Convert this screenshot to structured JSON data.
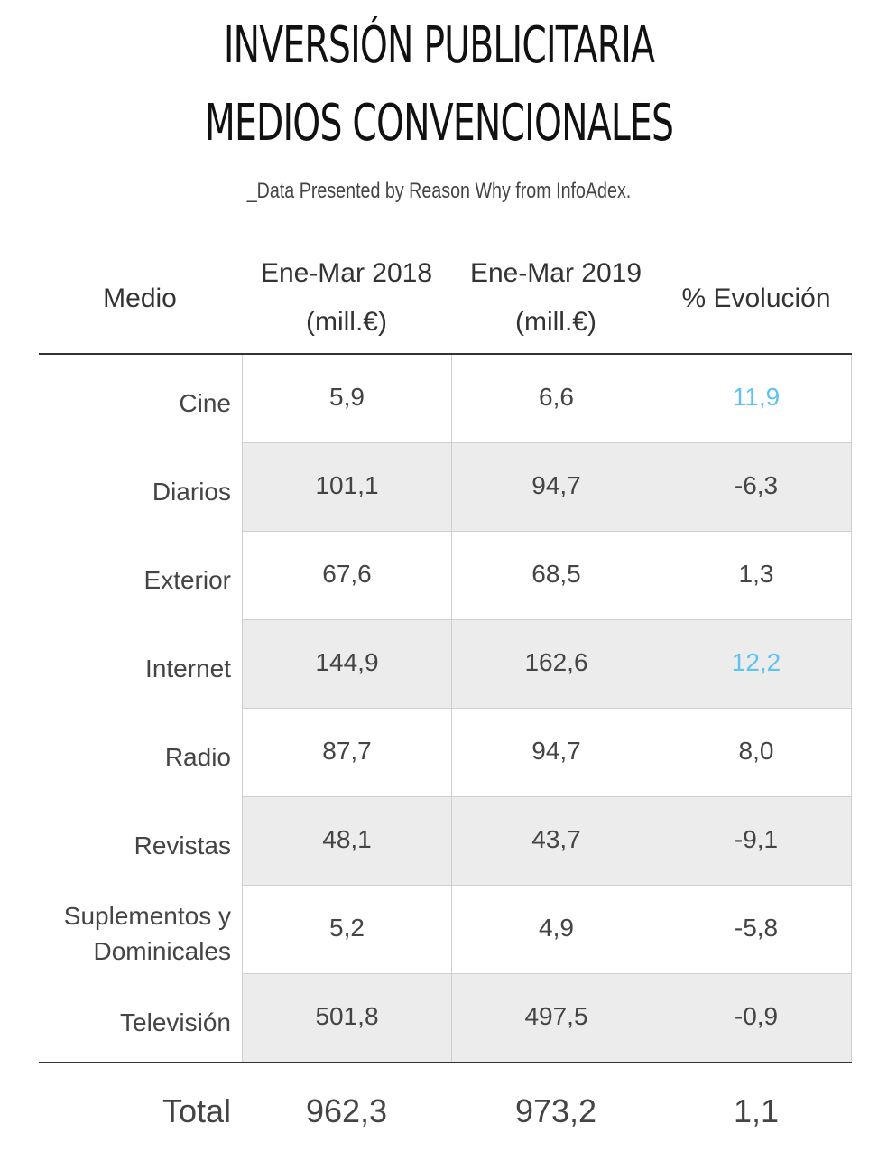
{
  "title_line1": "INVERSIÓN PUBLICITARIA",
  "title_line2": "MEDIOS CONVENCIONALES",
  "subtitle": "_Data Presented by Reason Why from InfoAdex.",
  "headers": {
    "medio": "Medio",
    "col2018_line1": "Ene-Mar 2018",
    "col2018_line2": "(mill.€)",
    "col2019_line1": "Ene-Mar 2019",
    "col2019_line2": "(mill.€)",
    "evolucion": "% Evolución"
  },
  "colors": {
    "highlight": "#5ec3ee",
    "shaded_row": "#ececec",
    "text": "#444444"
  },
  "chart_data": {
    "type": "table",
    "title": "INVERSIÓN PUBLICITARIA MEDIOS CONVENCIONALES",
    "columns": [
      "Medio",
      "Ene-Mar 2018 (mill.€)",
      "Ene-Mar 2019 (mill.€)",
      "% Evolución"
    ],
    "rows": [
      {
        "medio": "Cine",
        "v2018": "5,9",
        "v2019": "6,6",
        "evo": "11,9",
        "highlight": true
      },
      {
        "medio": "Diarios",
        "v2018": "101,1",
        "v2019": "94,7",
        "evo": "-6,3",
        "highlight": false
      },
      {
        "medio": "Exterior",
        "v2018": "67,6",
        "v2019": "68,5",
        "evo": "1,3",
        "highlight": false
      },
      {
        "medio": "Internet",
        "v2018": "144,9",
        "v2019": "162,6",
        "evo": "12,2",
        "highlight": true
      },
      {
        "medio": "Radio",
        "v2018": "87,7",
        "v2019": "94,7",
        "evo": "8,0",
        "highlight": false
      },
      {
        "medio": "Revistas",
        "v2018": "48,1",
        "v2019": "43,7",
        "evo": "-9,1",
        "highlight": false
      },
      {
        "medio": "Suplementos y Dominicales",
        "v2018": "5,2",
        "v2019": "4,9",
        "evo": "-5,8",
        "highlight": false
      },
      {
        "medio": "Televisión",
        "v2018": "501,8",
        "v2019": "497,5",
        "evo": "-0,9",
        "highlight": false
      }
    ],
    "total": {
      "label": "Total",
      "v2018": "962,3",
      "v2019": "973,2",
      "evo": "1,1"
    }
  }
}
